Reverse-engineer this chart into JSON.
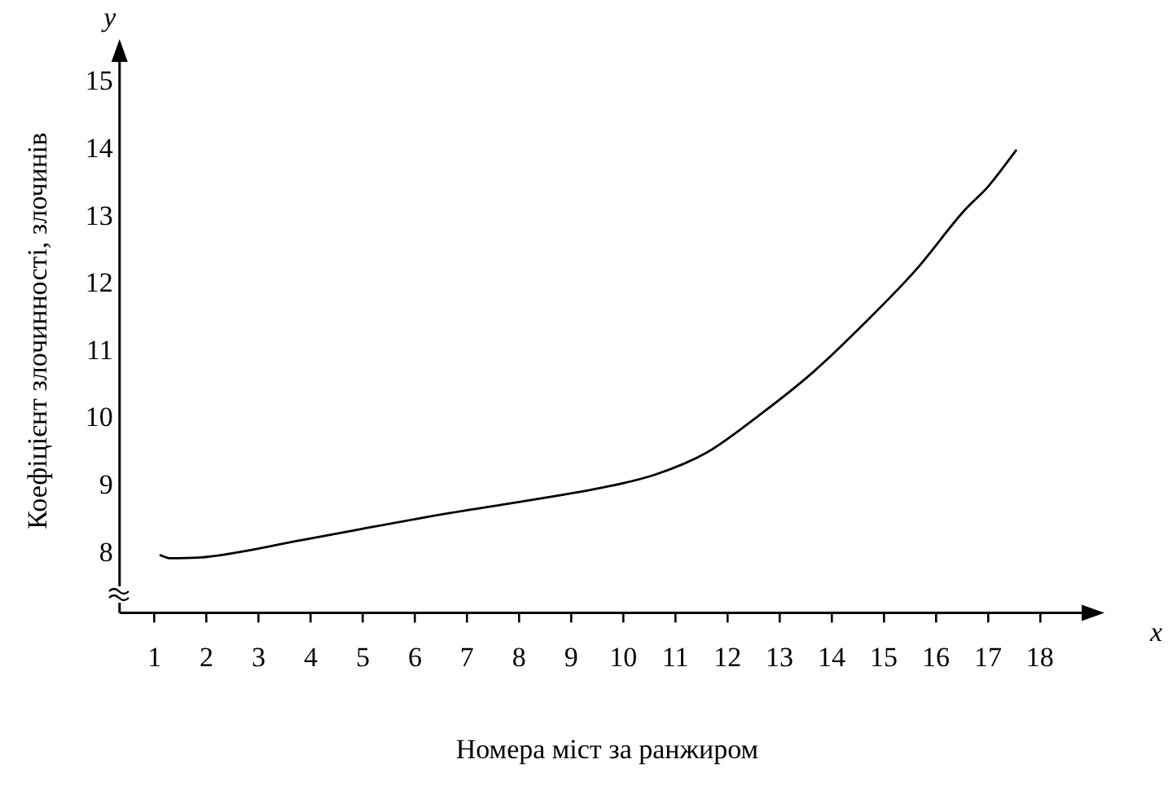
{
  "chart_data": {
    "type": "line",
    "xlabel": "Номера міст за ранжиром",
    "ylabel": "Коефіцієнт злочинності, злочинів",
    "annotations": [
      "y",
      "x"
    ],
    "x": [
      1.1,
      1.3,
      1.85,
      3.83,
      4.8,
      6.65,
      7.7,
      9.6,
      10.6,
      11.6,
      12.6,
      13.65,
      14.6,
      15.6,
      16.55,
      17.0,
      17.55
    ],
    "series": [
      {
        "color": "#000000",
        "values": [
          7.98,
          7.93,
          7.94,
          8.2,
          8.34,
          8.6,
          8.73,
          8.98,
          9.17,
          9.5,
          10.05,
          10.7,
          11.4,
          12.2,
          13.1,
          13.45,
          14.0
        ]
      }
    ],
    "xlim": [
      0.33,
      19.05
    ],
    "ylim": [
      7.12,
      15.5
    ],
    "xticks": [
      1,
      2,
      3,
      4,
      5,
      6,
      7,
      8,
      9,
      10,
      11,
      12,
      13,
      14,
      15,
      16,
      17,
      18
    ],
    "yticks": [
      8,
      9,
      10,
      11,
      12,
      13,
      14,
      15
    ],
    "grid": false,
    "legend": false,
    "marker": "none",
    "line_style": "solid"
  }
}
